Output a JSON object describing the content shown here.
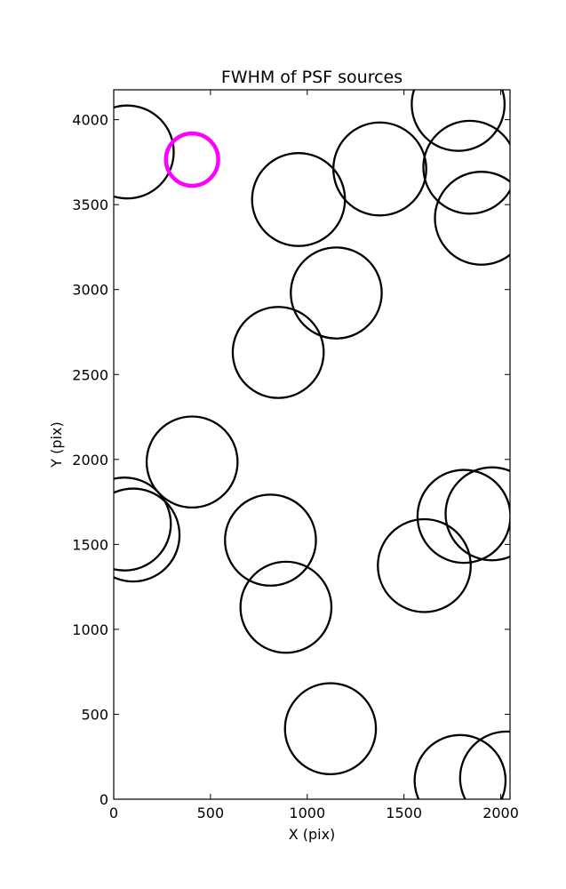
{
  "chart_data": {
    "type": "scatter",
    "title": "FWHM of PSF sources",
    "xlabel": "X (pix)",
    "ylabel": "Y (pix)",
    "xlim": [
      0,
      2048
    ],
    "ylim": [
      0,
      4176
    ],
    "xticks": [
      0,
      500,
      1000,
      1500,
      2000
    ],
    "yticks": [
      0,
      500,
      1000,
      1500,
      2000,
      2500,
      3000,
      3500,
      4000
    ],
    "grid": false,
    "colors": {
      "default": "#000000",
      "highlight": "#ff00ff"
    },
    "sources": [
      {
        "x": 70,
        "y": 3810,
        "r": 240
      },
      {
        "x": 405,
        "y": 3765,
        "r": 135,
        "highlight": true
      },
      {
        "x": 955,
        "y": 3530,
        "r": 240
      },
      {
        "x": 1375,
        "y": 3710,
        "r": 240
      },
      {
        "x": 1780,
        "y": 4090,
        "r": 240
      },
      {
        "x": 1840,
        "y": 3720,
        "r": 240
      },
      {
        "x": 1900,
        "y": 3420,
        "r": 240
      },
      {
        "x": 1150,
        "y": 2980,
        "r": 235
      },
      {
        "x": 850,
        "y": 2630,
        "r": 235
      },
      {
        "x": 405,
        "y": 1985,
        "r": 235
      },
      {
        "x": 55,
        "y": 1620,
        "r": 240
      },
      {
        "x": 100,
        "y": 1555,
        "r": 240
      },
      {
        "x": 810,
        "y": 1525,
        "r": 235
      },
      {
        "x": 890,
        "y": 1130,
        "r": 235
      },
      {
        "x": 1605,
        "y": 1375,
        "r": 240
      },
      {
        "x": 1810,
        "y": 1665,
        "r": 240
      },
      {
        "x": 1955,
        "y": 1680,
        "r": 240
      },
      {
        "x": 1120,
        "y": 415,
        "r": 235
      },
      {
        "x": 1790,
        "y": 110,
        "r": 235
      },
      {
        "x": 2030,
        "y": 125,
        "r": 240
      }
    ]
  }
}
